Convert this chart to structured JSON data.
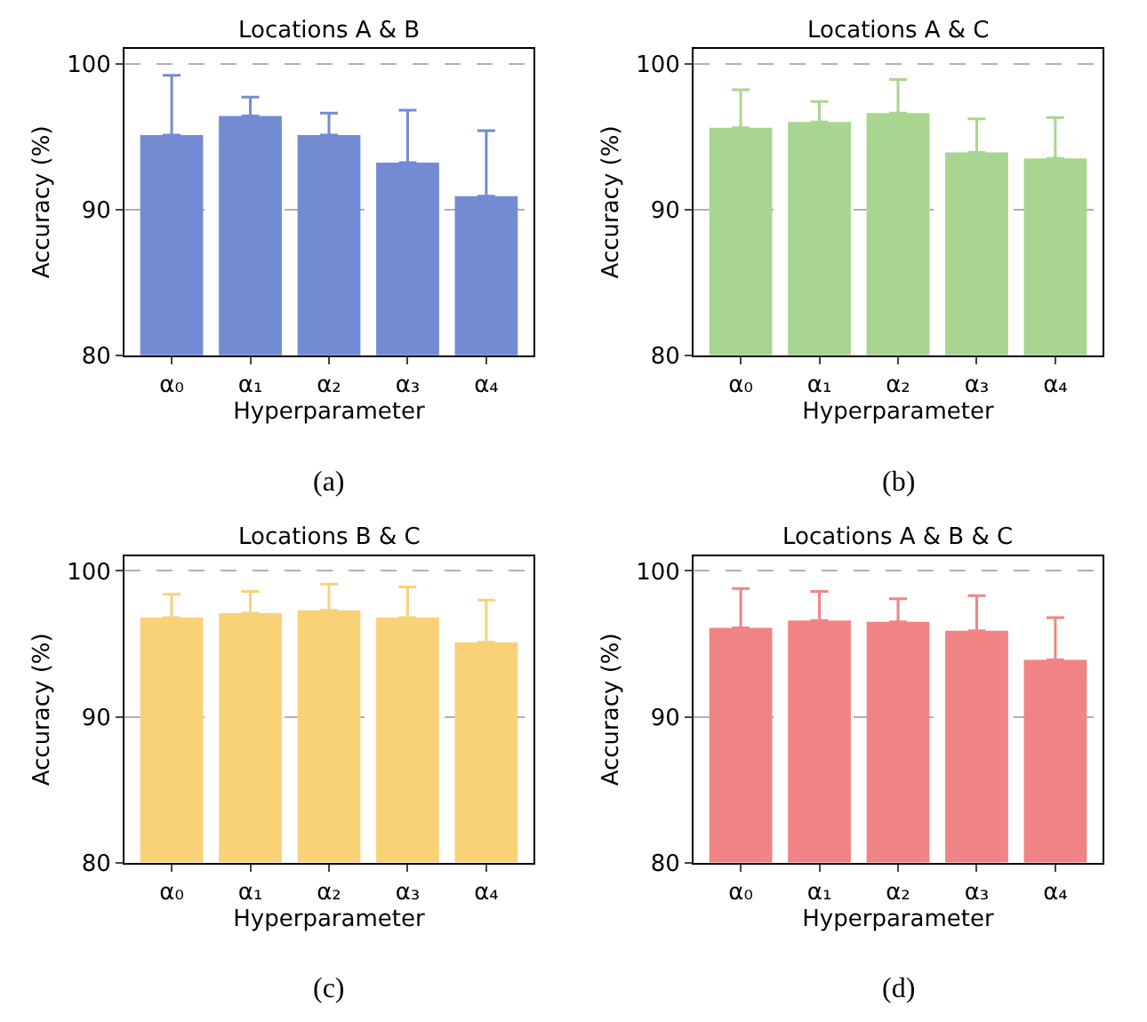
{
  "chart_data": [
    {
      "type": "bar",
      "title": "Locations A & B",
      "xlabel": "Hyperparameter",
      "ylabel": "Accuracy (%)",
      "categories": [
        "α₀",
        "α₁",
        "α₂",
        "α₃",
        "α₄"
      ],
      "color": "#738bd2",
      "values": [
        95.1,
        96.4,
        95.1,
        93.2,
        90.9
      ],
      "errors": [
        4.1,
        1.3,
        1.5,
        3.6,
        4.5
      ],
      "ylim": [
        80,
        101
      ],
      "yticks": [
        80,
        90,
        100
      ],
      "grid": "y",
      "annotations": [
        "(a)"
      ]
    },
    {
      "type": "bar",
      "title": "Locations A & C",
      "xlabel": "Hyperparameter",
      "ylabel": "Accuracy (%)",
      "categories": [
        "α₀",
        "α₁",
        "α₂",
        "α₃",
        "α₄"
      ],
      "color": "#a8d690",
      "values": [
        95.6,
        96.0,
        96.6,
        93.9,
        93.5
      ],
      "errors": [
        2.6,
        1.4,
        2.3,
        2.3,
        2.8
      ],
      "ylim": [
        80,
        101
      ],
      "yticks": [
        80,
        90,
        100
      ],
      "grid": "y",
      "annotations": [
        "(b)"
      ]
    },
    {
      "type": "bar",
      "title": "Locations B & C",
      "xlabel": "Hyperparameter",
      "ylabel": "Accuracy (%)",
      "categories": [
        "α₀",
        "α₁",
        "α₂",
        "α₃",
        "α₄"
      ],
      "color": "#f9d278",
      "values": [
        96.8,
        97.1,
        97.3,
        96.8,
        95.1
      ],
      "errors": [
        1.6,
        1.5,
        1.8,
        2.1,
        2.9
      ],
      "ylim": [
        80,
        101
      ],
      "yticks": [
        80,
        90,
        100
      ],
      "grid": "y",
      "annotations": [
        "(c)"
      ]
    },
    {
      "type": "bar",
      "title": "Locations A & B & C",
      "xlabel": "Hyperparameter",
      "ylabel": "Accuracy (%)",
      "categories": [
        "α₀",
        "α₁",
        "α₂",
        "α₃",
        "α₄"
      ],
      "color": "#f08484",
      "values": [
        96.1,
        96.6,
        96.5,
        95.9,
        93.9
      ],
      "errors": [
        2.7,
        2.0,
        1.6,
        2.4,
        2.9
      ],
      "ylim": [
        80,
        101
      ],
      "yticks": [
        80,
        90,
        100
      ],
      "grid": "y",
      "annotations": [
        "(d)"
      ]
    }
  ]
}
